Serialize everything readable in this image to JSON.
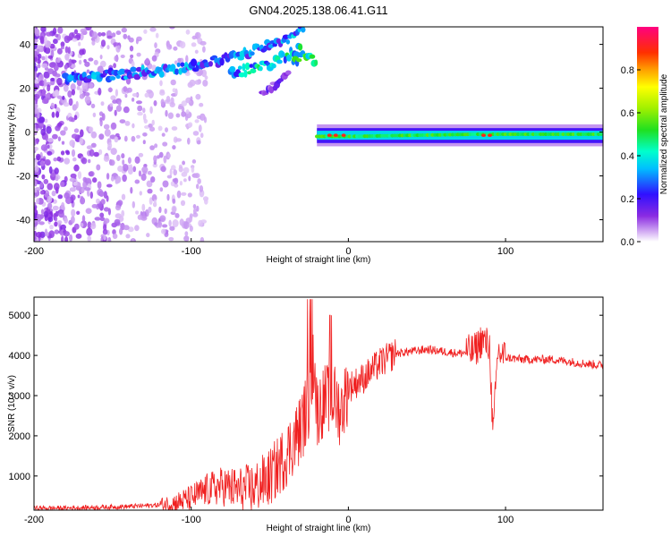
{
  "chart_data": [
    {
      "type": "heatmap",
      "title": "GN04.2025.138.06.41.G11",
      "xlabel": "Height of straight line (km)",
      "ylabel": "Frequency (Hz)",
      "xlim": [
        -200,
        162
      ],
      "ylim": [
        -50,
        48
      ],
      "xticks": [
        -200,
        -100,
        0,
        100
      ],
      "yticks": [
        -40,
        -20,
        0,
        20,
        40
      ],
      "grid": false,
      "colorbar": {
        "label": "Normalized spectral amplitude",
        "range": [
          0,
          1
        ],
        "ticks": [
          0.0,
          0.2,
          0.4,
          0.6,
          0.8
        ],
        "colormap": "rainbow: purple-blue-cyan-green-yellow-orange-red-magenta"
      },
      "features": [
        {
          "name": "",
          "x": [
            -180,
            -150,
            -120,
            -100,
            -80,
            -60,
            -40,
            -28
          ],
          "y": [
            25,
            26,
            28,
            30,
            33,
            37,
            42,
            47
          ],
          "amplitude": 0.3
        },
        {
          "name": "",
          "x": [
            -75,
            -60,
            -50,
            -40,
            -30
          ],
          "y": [
            27,
            29,
            31,
            35,
            38
          ],
          "amplitude": 0.4
        },
        {
          "name": "",
          "x": [
            -55,
            -45,
            -38
          ],
          "y": [
            18,
            22,
            27
          ],
          "amplitude": 0.15
        },
        {
          "name": "",
          "x": [
            -35,
            -30,
            -25,
            -20
          ],
          "y": [
            32,
            35,
            34,
            32
          ],
          "amplitude": 0.45
        },
        {
          "name": "",
          "x": [
            -20,
            0,
            40,
            80,
            100,
            162
          ],
          "y": [
            -2,
            -2,
            -1.5,
            -1,
            -1,
            -1
          ],
          "amplitude": 0.5
        }
      ]
    },
    {
      "type": "line",
      "title": "",
      "xlabel": "Height of straight line (km)",
      "ylabel": "SNR (10 * v/v)",
      "xlim": [
        -200,
        162
      ],
      "ylim": [
        150,
        5450
      ],
      "xticks": [
        -200,
        -100,
        0,
        100
      ],
      "yticks": [
        1000,
        2000,
        3000,
        4000,
        5000
      ],
      "grid": false,
      "color": "#f02020",
      "series": [
        {
          "name": "",
          "x": [
            -200,
            -180,
            -160,
            -140,
            -120,
            -110,
            -100,
            -90,
            -80,
            -70,
            -60,
            -50,
            -40,
            -30,
            -25,
            -22,
            -20,
            -15,
            -10,
            -5,
            0,
            10,
            20,
            30,
            40,
            50,
            60,
            70,
            80,
            85,
            90,
            92,
            95,
            100,
            110,
            120,
            130,
            140,
            150,
            162
          ],
          "y": [
            200,
            200,
            220,
            240,
            280,
            330,
            450,
            650,
            750,
            650,
            700,
            950,
            1500,
            2200,
            2900,
            4000,
            2600,
            2900,
            3000,
            2600,
            3200,
            3450,
            3800,
            4050,
            4100,
            4150,
            4100,
            4050,
            4100,
            4400,
            4200,
            1900,
            4100,
            3950,
            3900,
            3900,
            3900,
            3850,
            3800,
            3750
          ]
        }
      ]
    }
  ]
}
